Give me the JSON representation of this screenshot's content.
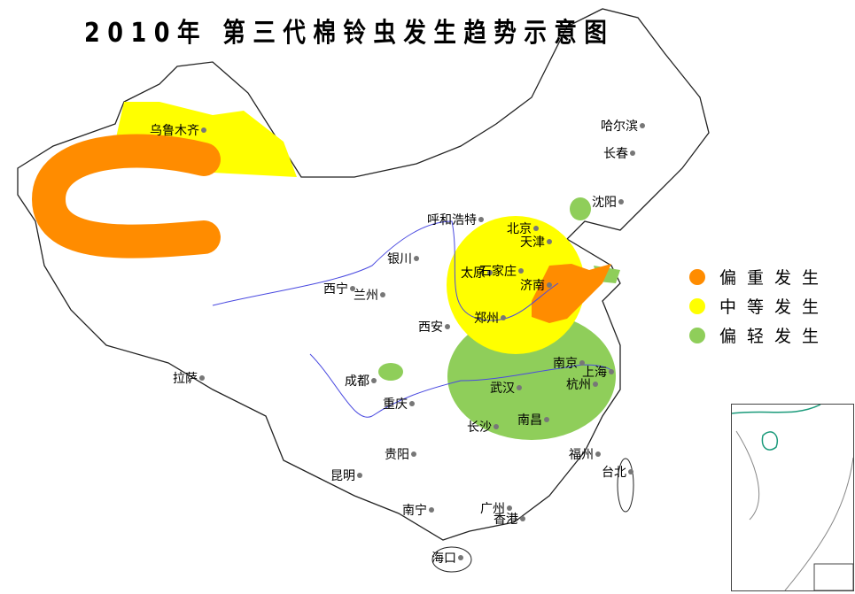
{
  "title": "2010年 第三代棉铃虫发生趋势示意图",
  "colors": {
    "severe": "#ff8c00",
    "moderate": "#ffff00",
    "light": "#8fce5a",
    "border": "#222222",
    "river": "#4a4ae0"
  },
  "legend": [
    {
      "label": "偏重发生",
      "color": "#ff8c00"
    },
    {
      "label": "中等发生",
      "color": "#ffff00"
    },
    {
      "label": "偏轻发生",
      "color": "#8fce5a"
    }
  ],
  "cities": [
    {
      "name": "乌鲁木齐"
    },
    {
      "name": "哈尔滨"
    },
    {
      "name": "长春"
    },
    {
      "name": "沈阳"
    },
    {
      "name": "呼和浩特"
    },
    {
      "name": "北京"
    },
    {
      "name": "天津"
    },
    {
      "name": "太原"
    },
    {
      "name": "石家庄"
    },
    {
      "name": "济南"
    },
    {
      "name": "银川"
    },
    {
      "name": "西宁"
    },
    {
      "name": "兰州"
    },
    {
      "name": "西安"
    },
    {
      "name": "郑州"
    },
    {
      "name": "拉萨"
    },
    {
      "name": "成都"
    },
    {
      "name": "重庆"
    },
    {
      "name": "武汉"
    },
    {
      "name": "南京"
    },
    {
      "name": "上海"
    },
    {
      "name": "杭州"
    },
    {
      "name": "长沙"
    },
    {
      "name": "南昌"
    },
    {
      "name": "贵阳"
    },
    {
      "name": "昆明"
    },
    {
      "name": "福州"
    },
    {
      "name": "台北"
    },
    {
      "name": "南宁"
    },
    {
      "name": "广州"
    },
    {
      "name": "香港"
    },
    {
      "name": "海口"
    }
  ]
}
